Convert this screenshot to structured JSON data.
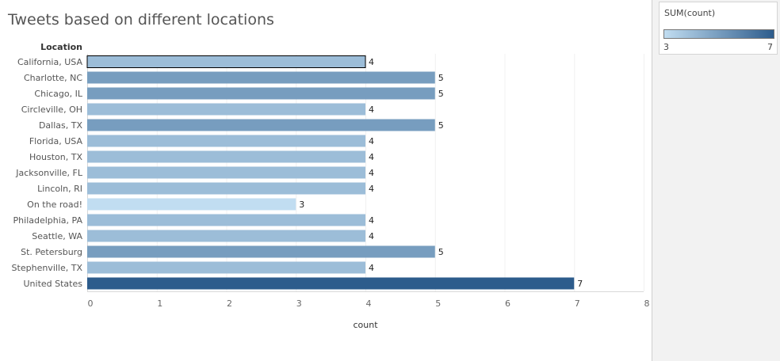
{
  "chart_data": {
    "type": "bar",
    "orientation": "horizontal",
    "title": "Tweets based on different locations",
    "category_label": "Location",
    "xlabel": "count",
    "categories": [
      "California, USA",
      "Charlotte, NC",
      "Chicago, IL",
      "Circleville, OH",
      "Dallas, TX",
      "Florida, USA",
      "Houston, TX",
      "Jacksonville, FL",
      "Lincoln, RI",
      "On the road!",
      "Philadelphia, PA",
      "Seattle, WA",
      "St. Petersburg",
      "Stephenville, TX",
      "United States"
    ],
    "values": [
      4,
      5,
      5,
      4,
      5,
      4,
      4,
      4,
      4,
      3,
      4,
      4,
      5,
      4,
      7
    ],
    "xlim": [
      0,
      8
    ],
    "xticks": [
      "0",
      "1",
      "2",
      "3",
      "4",
      "5",
      "6",
      "7",
      "8"
    ],
    "grid": true,
    "data_labels": true,
    "color_scale": {
      "field": "SUM(count)",
      "min": 3,
      "max": 7,
      "min_color": "#c1ddf1",
      "max_color": "#2d5c8c"
    },
    "highlighted_category": "California, USA"
  },
  "legend": {
    "title": "SUM(count)",
    "min_label": "3",
    "max_label": "7"
  }
}
